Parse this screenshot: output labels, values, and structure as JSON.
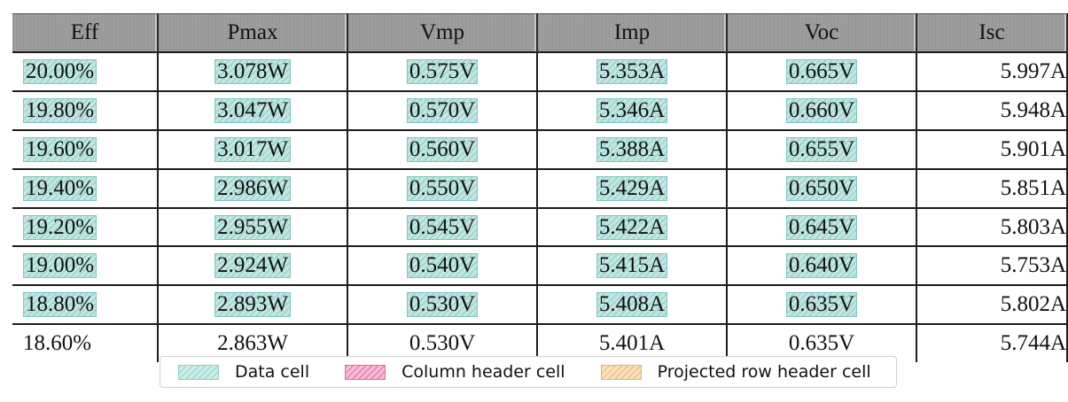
{
  "table": {
    "headers": [
      "Eff",
      "Pmax",
      "Vmp",
      "Imp",
      "Voc",
      "Isc"
    ],
    "rows": [
      {
        "cells": [
          "20.00%",
          "3.078W",
          "0.575V",
          "5.353A",
          "0.665V",
          "5.997A"
        ],
        "highlighted": true
      },
      {
        "cells": [
          "19.80%",
          "3.047W",
          "0.570V",
          "5.346A",
          "0.660V",
          "5.948A"
        ],
        "highlighted": true
      },
      {
        "cells": [
          "19.60%",
          "3.017W",
          "0.560V",
          "5.388A",
          "0.655V",
          "5.901A"
        ],
        "highlighted": true
      },
      {
        "cells": [
          "19.40%",
          "2.986W",
          "0.550V",
          "5.429A",
          "0.650V",
          "5.851A"
        ],
        "highlighted": true
      },
      {
        "cells": [
          "19.20%",
          "2.955W",
          "0.545V",
          "5.422A",
          "0.645V",
          "5.803A"
        ],
        "highlighted": true
      },
      {
        "cells": [
          "19.00%",
          "2.924W",
          "0.540V",
          "5.415A",
          "0.640V",
          "5.753A"
        ],
        "highlighted": true
      },
      {
        "cells": [
          "18.80%",
          "2.893W",
          "0.530V",
          "5.408A",
          "0.635V",
          "5.802A"
        ],
        "highlighted": true
      },
      {
        "cells": [
          "18.60%",
          "2.863W",
          "0.530V",
          "5.401A",
          "0.635V",
          "5.744A"
        ],
        "highlighted": false
      }
    ]
  },
  "legend": {
    "items": [
      {
        "label": "Data cell",
        "color": "#96d4ce"
      },
      {
        "label": "Column header cell",
        "color": "#e98ab5"
      },
      {
        "label": "Projected row header cell",
        "color": "#f0c78c"
      }
    ]
  }
}
